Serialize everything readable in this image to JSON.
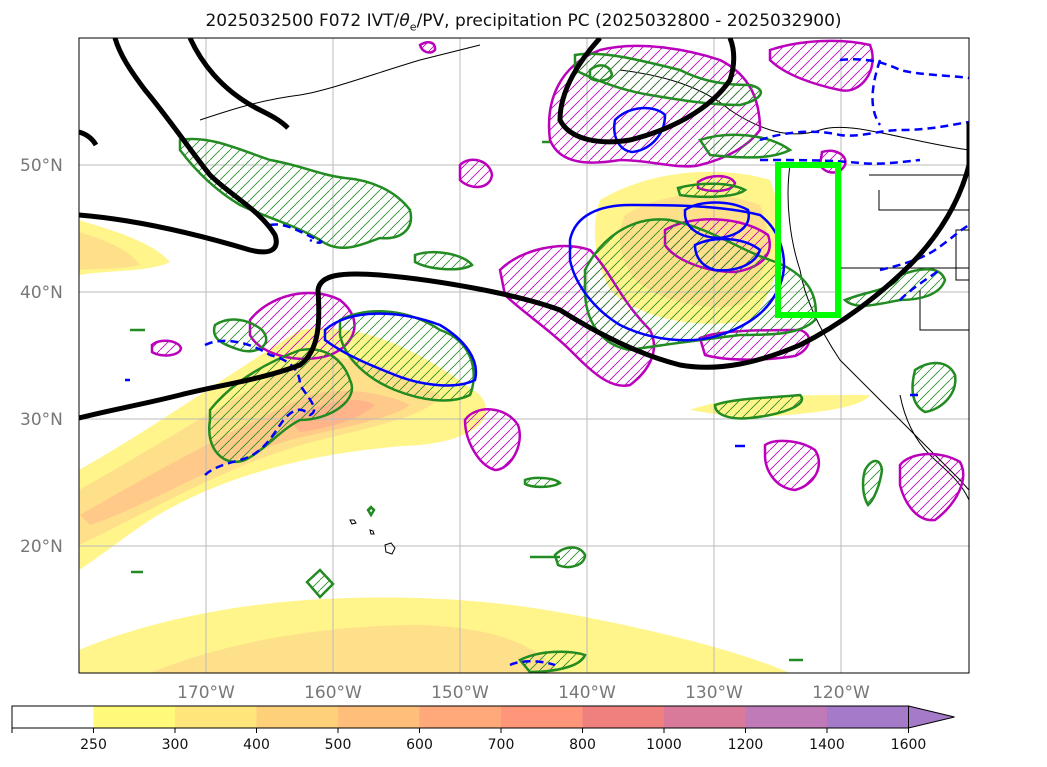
{
  "title": "2025032500 F072 IVT/θe/PV, precipitation PC (2025032800 - 2025032900)",
  "title_parts": {
    "prefix": "2025032500 F072 IVT/",
    "theta": "θ",
    "sub": "e",
    "suffix": "/PV, precipitation PC (2025032800 - 2025032900)"
  },
  "map": {
    "projection": "PlateCarree",
    "lon_range": [
      -180,
      -110
    ],
    "lat_range": [
      10,
      60
    ],
    "lat_labels": [
      "50°N",
      "40°N",
      "30°N",
      "20°N"
    ],
    "lat_values": [
      50,
      40,
      30,
      20
    ],
    "lon_labels": [
      "170°W",
      "160°W",
      "150°W",
      "140°W",
      "130°W",
      "120°W"
    ],
    "lon_values": [
      -170,
      -160,
      -150,
      -140,
      -130,
      -120
    ],
    "highlight_box": {
      "color": "#00ff00",
      "lon": [
        -125,
        -120
      ],
      "lat": [
        38,
        50
      ]
    }
  },
  "colorbar": {
    "ticks": [
      "250",
      "300",
      "400",
      "500",
      "600",
      "700",
      "800",
      "1000",
      "1200",
      "1400",
      "1600"
    ],
    "colors": [
      "#ffffff",
      "#fffa7a",
      "#ffe57a",
      "#ffd07a",
      "#ffbe7a",
      "#ffa87a",
      "#ff967a",
      "#f0807e",
      "#d97a9a",
      "#c07ab8",
      "#a57ac8"
    ],
    "extend": "max"
  },
  "colors": {
    "ivt_fill": "#ffe066",
    "pv_contour": "#000000",
    "theta_e_pos": "#0000ff",
    "precip_pos": "#228b22",
    "precip_neg": "#bb00bb",
    "coastline": "#000000",
    "grid": "#bbbbbb"
  }
}
